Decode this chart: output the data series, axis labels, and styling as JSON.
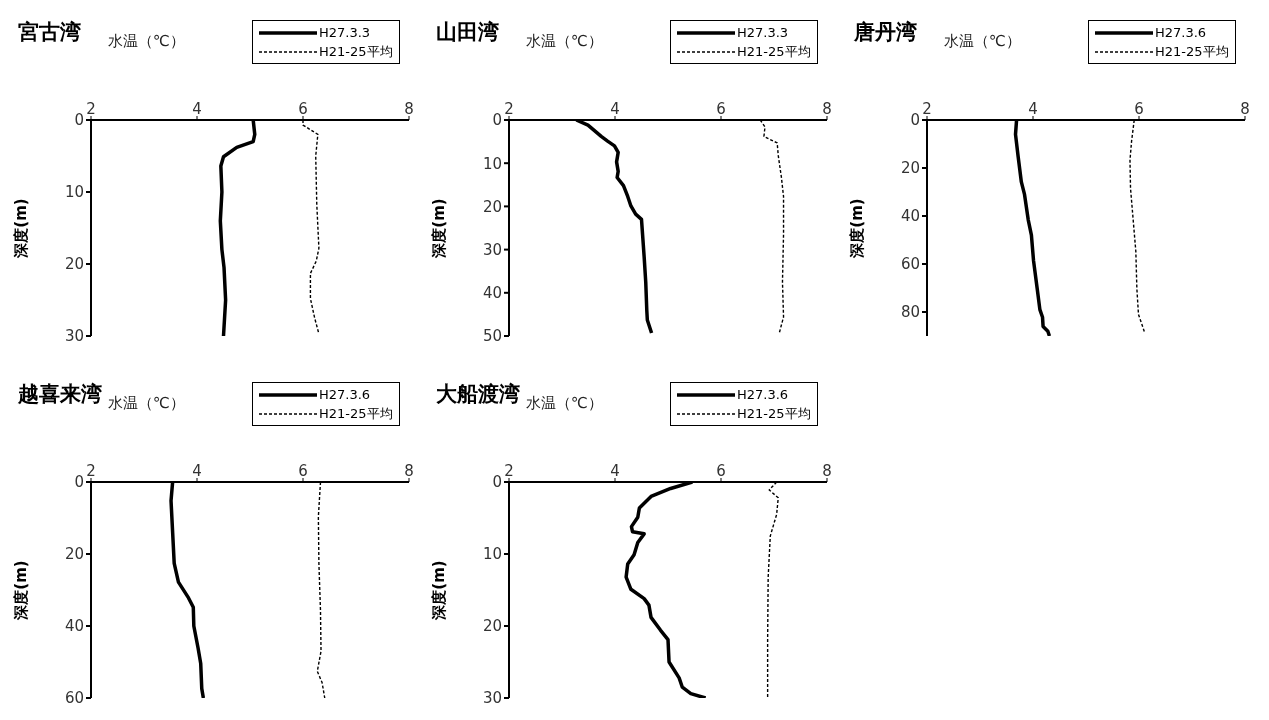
{
  "chart_data": [
    {
      "type": "line",
      "orientation": "horizontal",
      "title": "宮古湾",
      "xlabel": "水温（℃）",
      "ylabel": "深度(m)",
      "xlim": [
        2,
        8
      ],
      "xticks": [
        2,
        4,
        6,
        8
      ],
      "ylim": [
        30,
        0
      ],
      "yticks": [
        0,
        10,
        20,
        30
      ],
      "legend": "top right",
      "series": [
        {
          "name": "H27.3.3",
          "color": "#000000",
          "line_style": "solid",
          "values": [
            5.06,
            5.09,
            5.06,
            4.75,
            4.5,
            4.45,
            4.47,
            4.44,
            4.47,
            4.51,
            4.54,
            4.5
          ],
          "x": [
            0,
            2,
            3,
            3.8,
            5.1,
            6.4,
            10,
            14,
            18,
            20.5,
            25,
            30
          ]
        },
        {
          "name": "H21-25平均",
          "color": "#000000",
          "line_style": "dashed",
          "values": [
            6.0,
            6.0,
            6.28,
            6.24,
            6.26,
            6.3,
            6.25,
            6.14,
            6.14,
            6.22,
            6.3
          ],
          "x": [
            0,
            0.7,
            2,
            5,
            11.7,
            17.8,
            19.6,
            21.3,
            24.8,
            27.5,
            29.7
          ]
        }
      ]
    },
    {
      "type": "line",
      "orientation": "horizontal",
      "title": "山田湾",
      "xlabel": "水温（℃）",
      "ylabel": "深度(m)",
      "xlim": [
        2,
        8
      ],
      "xticks": [
        2,
        4,
        6,
        8
      ],
      "ylim": [
        50,
        0
      ],
      "yticks": [
        0,
        10,
        20,
        30,
        40,
        50
      ],
      "legend": "top right",
      "series": [
        {
          "name": "H27.3.3",
          "color": "#000000",
          "line_style": "solid",
          "values": [
            3.27,
            3.49,
            3.74,
            3.86,
            3.99,
            4.06,
            4.03,
            4.06,
            4.04,
            4.16,
            4.24,
            4.3,
            4.39,
            4.5,
            4.52,
            4.55,
            4.58,
            4.6,
            4.61,
            4.69
          ],
          "x": [
            0,
            1.2,
            3.8,
            4.9,
            6,
            7.5,
            9.7,
            11.9,
            13.3,
            15.2,
            17.7,
            19.9,
            21.8,
            23,
            26.5,
            31.7,
            37.5,
            44.1,
            46.3,
            49.3
          ]
        },
        {
          "name": "H21-25平均",
          "color": "#000000",
          "line_style": "dashed",
          "values": [
            6.74,
            6.83,
            6.81,
            6.99,
            7.06,
            7.08,
            7.14,
            7.18,
            7.18,
            7.16,
            7.18,
            7.1
          ],
          "x": [
            0,
            1.6,
            3.8,
            4.9,
            5.3,
            8.2,
            13.3,
            17.7,
            26.5,
            37.5,
            45.6,
            49.3
          ]
        }
      ]
    },
    {
      "type": "line",
      "orientation": "horizontal",
      "title": "唐丹湾",
      "xlabel": "水温（℃）",
      "ylabel": "深度(m)",
      "xlim": [
        2,
        8
      ],
      "xticks": [
        2,
        4,
        6,
        8
      ],
      "ylim": [
        90,
        0
      ],
      "yticks": [
        0,
        20,
        40,
        60,
        80
      ],
      "legend": "top right",
      "series": [
        {
          "name": "H27.3.6",
          "color": "#000000",
          "line_style": "solid",
          "values": [
            3.69,
            3.67,
            3.72,
            3.78,
            3.84,
            3.91,
            3.97,
            4.01,
            4.08,
            4.13,
            4.18,
            4.19,
            4.28,
            4.31
          ],
          "x": [
            0,
            6,
            15.3,
            25.8,
            31,
            41.6,
            48,
            58.6,
            70.4,
            79,
            82.2,
            86,
            88,
            90
          ]
        },
        {
          "name": "H21-25平均",
          "color": "#000000",
          "line_style": "dashed",
          "values": [
            5.91,
            5.86,
            5.83,
            5.84,
            5.89,
            5.94,
            5.96,
            5.99,
            6.06,
            6.11
          ],
          "x": [
            0,
            8.8,
            16.7,
            28.5,
            41.6,
            54.7,
            70.4,
            81,
            85.5,
            88.8
          ]
        }
      ]
    },
    {
      "type": "line",
      "orientation": "horizontal",
      "title": "越喜来湾",
      "xlabel": "水温（℃）",
      "ylabel": "深度(m)",
      "xlim": [
        2,
        8
      ],
      "xticks": [
        2,
        4,
        6,
        8
      ],
      "ylim": [
        60,
        0
      ],
      "yticks": [
        0,
        20,
        40,
        60
      ],
      "legend": "top right",
      "series": [
        {
          "name": "H27.3.6",
          "color": "#000000",
          "line_style": "solid",
          "values": [
            3.54,
            3.51,
            3.54,
            3.57,
            3.65,
            3.84,
            3.93,
            3.94,
            4.02,
            4.07,
            4.09,
            4.12
          ],
          "x": [
            0,
            5.2,
            13.9,
            22.6,
            27.8,
            32.2,
            34.8,
            40,
            46.1,
            50.4,
            57.4,
            60
          ]
        },
        {
          "name": "H21-25平均",
          "color": "#000000",
          "line_style": "dashed",
          "values": [
            6.33,
            6.29,
            6.3,
            6.33,
            6.34,
            6.27,
            6.36,
            6.41
          ],
          "x": [
            0,
            9.6,
            22.6,
            35.7,
            47,
            52.6,
            55.7,
            60
          ]
        }
      ]
    },
    {
      "type": "line",
      "orientation": "horizontal",
      "title": "大船渡湾",
      "xlabel": "水温（℃）",
      "ylabel": "深度(m)",
      "xlim": [
        2,
        8
      ],
      "xticks": [
        2,
        4,
        6,
        8
      ],
      "ylim": [
        30,
        0
      ],
      "yticks": [
        0,
        10,
        20,
        30
      ],
      "legend": "top right",
      "series": [
        {
          "name": "H27.3.6",
          "color": "#000000",
          "line_style": "solid",
          "values": [
            5.46,
            5.05,
            4.68,
            4.46,
            4.43,
            4.31,
            4.33,
            4.55,
            4.43,
            4.36,
            4.24,
            4.21,
            4.3,
            4.55,
            4.64,
            4.68,
            4.86,
            5.0,
            5.02,
            5.21,
            5.27,
            5.43,
            5.71
          ],
          "x": [
            0,
            0.9,
            2,
            3.6,
            4.9,
            6.2,
            6.9,
            7.2,
            8.4,
            10.1,
            11.4,
            13.2,
            14.9,
            16.2,
            17.1,
            18.8,
            20.6,
            21.9,
            25,
            27.2,
            28.5,
            29.4,
            30
          ]
        },
        {
          "name": "H21-25平均",
          "color": "#000000",
          "line_style": "dashed",
          "values": [
            7.05,
            6.91,
            7.08,
            7.05,
            6.93,
            6.89,
            6.88,
            6.88
          ],
          "x": [
            0,
            1.1,
            2.2,
            4.5,
            7.5,
            13.2,
            21.9,
            30
          ]
        }
      ]
    }
  ]
}
